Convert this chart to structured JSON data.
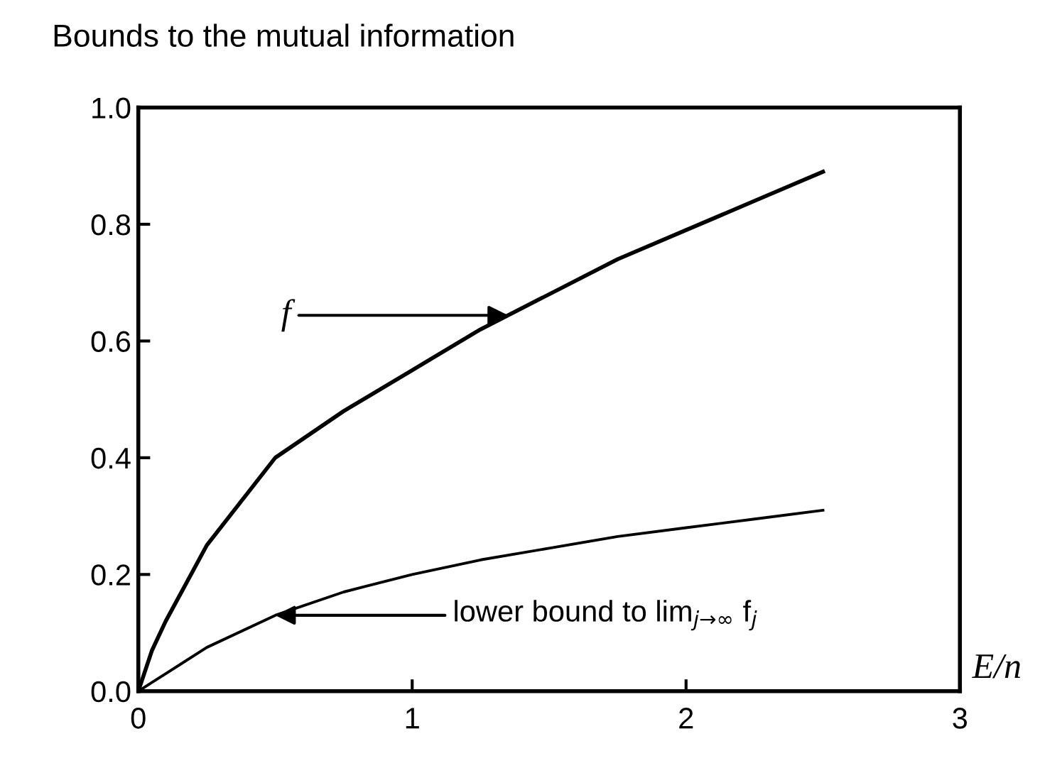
{
  "chart_data": {
    "type": "line",
    "title": "Bounds to the mutual information",
    "xlabel": "E/n",
    "x": [
      0,
      0.05,
      0.1,
      0.25,
      0.5,
      0.75,
      1,
      1.25,
      1.5,
      1.75,
      2,
      2.25,
      2.5
    ],
    "series": [
      {
        "color": "#000000",
        "values": [
          0,
          0.07,
          0.12,
          0.25,
          0.4,
          0.48,
          0.55,
          0.62,
          0.68,
          0.74,
          0.79,
          0.84,
          0.89
        ]
      },
      {
        "color": "#000000",
        "values": [
          0,
          0.015,
          0.03,
          0.075,
          0.13,
          0.17,
          0.2,
          0.225,
          0.245,
          0.265,
          0.28,
          0.295,
          0.31
        ]
      }
    ],
    "xlim": [
      0,
      3
    ],
    "ylim": [
      0,
      1
    ],
    "xticks": [
      0,
      1,
      2,
      3
    ],
    "yticks": [
      {
        "value": 0,
        "label": "0.0"
      },
      {
        "value": 0.2,
        "label": "0.2"
      },
      {
        "value": 0.4,
        "label": "0.4"
      },
      {
        "value": 0.6,
        "label": "0.6"
      },
      {
        "value": 0.8,
        "label": "0.8"
      },
      {
        "value": 1,
        "label": "1.0"
      }
    ],
    "grid": false,
    "legend": false,
    "marker": "none",
    "line_style": "solid",
    "annotations": [
      {
        "text": "f",
        "x": 1.35,
        "y": 0.644
      },
      {
        "text": "lower bound to lim$_{j→∞}$ f$_{j}$",
        "x": 0.5,
        "y": 0.13
      }
    ]
  }
}
